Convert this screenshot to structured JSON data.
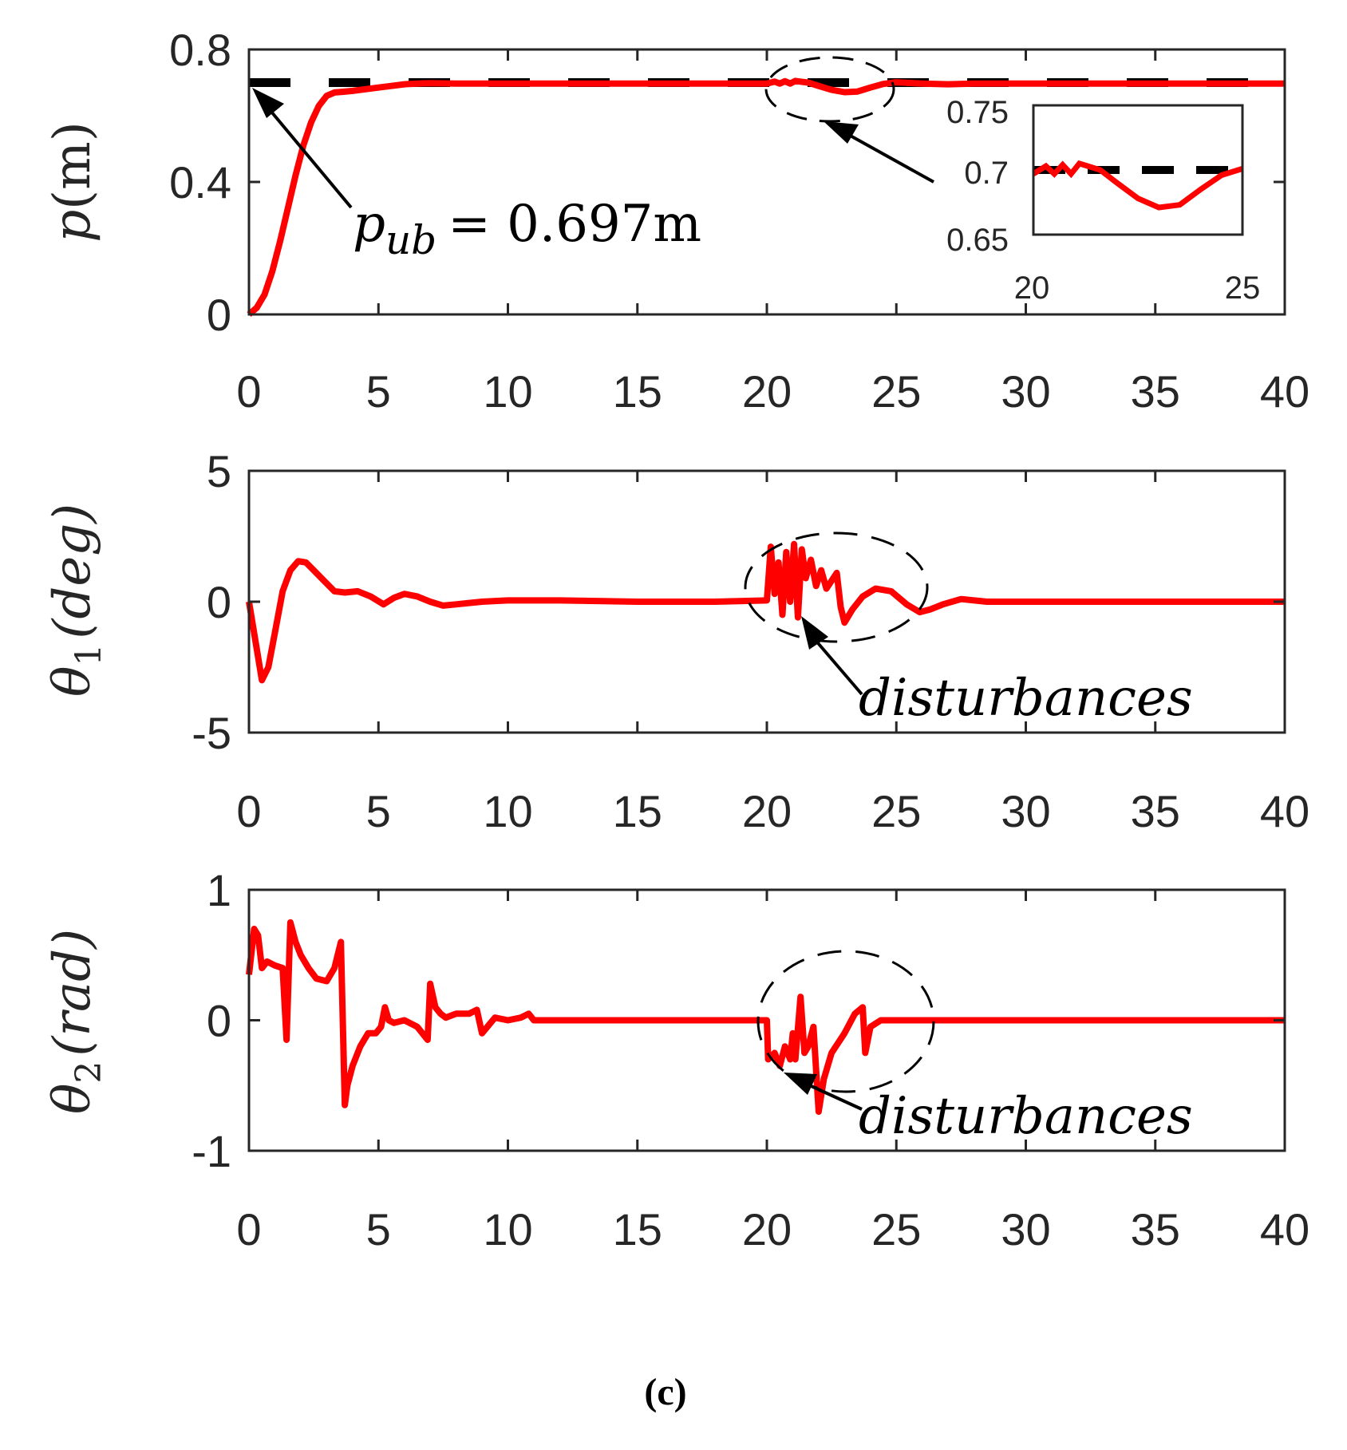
{
  "figure": {
    "caption": "(c)",
    "ref_color": "#000000",
    "series_color": "#ff0000",
    "axis_color": "#262626"
  },
  "chart_data": [
    {
      "type": "line",
      "xlabel": "",
      "ylabel": {
        "var": "p",
        "unit": "(m)"
      },
      "xlim": [
        0,
        40
      ],
      "ylim": [
        0,
        0.8
      ],
      "xticks": [
        0,
        5,
        10,
        15,
        20,
        25,
        30,
        35,
        40
      ],
      "yticks": [
        "0",
        "0.4",
        "0.8"
      ],
      "reference": {
        "name": "p_ub",
        "value": 0.7,
        "style": "dashed"
      },
      "annotation": {
        "lhs": "p",
        "sub": "ub",
        "rhs": "= 0.697m"
      },
      "series": [
        {
          "name": "p(m)",
          "x": [
            0,
            0.3,
            0.6,
            0.9,
            1.2,
            1.5,
            1.8,
            2.1,
            2.4,
            2.7,
            3.0,
            3.3,
            3.6,
            4.0,
            4.5,
            5.0,
            5.5,
            6.0,
            6.5,
            7,
            8,
            10,
            12,
            15,
            18,
            20,
            20.3,
            20.5,
            20.7,
            20.9,
            21.1,
            21.3,
            21.6,
            22.0,
            22.5,
            23.0,
            23.5,
            24.0,
            24.5,
            25.0,
            26,
            27,
            28,
            30,
            35,
            40
          ],
          "y": [
            0.0,
            0.02,
            0.06,
            0.13,
            0.22,
            0.32,
            0.42,
            0.51,
            0.58,
            0.63,
            0.66,
            0.67,
            0.672,
            0.675,
            0.68,
            0.685,
            0.69,
            0.695,
            0.697,
            0.698,
            0.697,
            0.697,
            0.697,
            0.697,
            0.697,
            0.697,
            0.703,
            0.697,
            0.704,
            0.697,
            0.705,
            0.703,
            0.7,
            0.69,
            0.678,
            0.671,
            0.673,
            0.685,
            0.696,
            0.701,
            0.697,
            0.695,
            0.697,
            0.697,
            0.697,
            0.697
          ]
        }
      ],
      "inset": {
        "xlim": [
          20,
          25
        ],
        "ylim": [
          0.65,
          0.75
        ],
        "xticks": [
          "20",
          "25"
        ],
        "yticks": [
          "0.65",
          "0.7",
          "0.75"
        ]
      }
    },
    {
      "type": "line",
      "xlabel": "",
      "ylabel": {
        "var": "θ",
        "sub": "1",
        "unit": "(deg)"
      },
      "xlim": [
        0,
        40
      ],
      "ylim": [
        -5,
        5
      ],
      "xticks": [
        0,
        5,
        10,
        15,
        20,
        25,
        30,
        35,
        40
      ],
      "yticks": [
        "-5",
        "0",
        "5"
      ],
      "annotation": {
        "text": "disturbances"
      },
      "series": [
        {
          "name": "θ1(deg)",
          "x": [
            0,
            0.25,
            0.5,
            0.75,
            1.0,
            1.3,
            1.6,
            1.9,
            2.2,
            2.5,
            2.9,
            3.3,
            3.7,
            4.2,
            4.7,
            5.2,
            5.6,
            6.0,
            6.5,
            7.0,
            7.5,
            8.0,
            8.5,
            9.0,
            10,
            12,
            15,
            18,
            20.0,
            20.15,
            20.3,
            20.45,
            20.6,
            20.75,
            20.9,
            21.05,
            21.2,
            21.35,
            21.5,
            21.7,
            21.9,
            22.1,
            22.3,
            22.5,
            22.7,
            22.85,
            23.0,
            23.3,
            23.7,
            24.2,
            24.8,
            25.4,
            25.9,
            26.3,
            26.8,
            27.5,
            28.5,
            30,
            32,
            35,
            38,
            40
          ],
          "y": [
            0,
            -1.5,
            -3.0,
            -2.5,
            -1.2,
            0.4,
            1.2,
            1.55,
            1.5,
            1.2,
            0.8,
            0.4,
            0.35,
            0.4,
            0.2,
            -0.1,
            0.15,
            0.3,
            0.2,
            0.0,
            -0.15,
            -0.1,
            -0.05,
            0.0,
            0.05,
            0.05,
            0.0,
            0.0,
            0.05,
            2.1,
            0.3,
            1.5,
            -0.5,
            1.9,
            0.0,
            2.2,
            -0.6,
            2.0,
            0.9,
            1.6,
            0.6,
            1.2,
            0.5,
            0.8,
            1.1,
            -0.2,
            -0.8,
            -0.3,
            0.2,
            0.5,
            0.4,
            -0.1,
            -0.4,
            -0.3,
            -0.1,
            0.1,
            0.0,
            0.0,
            0.0,
            0.0,
            0.0,
            0.0
          ]
        }
      ]
    },
    {
      "type": "line",
      "xlabel": "",
      "ylabel": {
        "var": "θ",
        "sub": "2",
        "unit": "(rad)"
      },
      "xlim": [
        0,
        40
      ],
      "ylim": [
        -1,
        1
      ],
      "xticks": [
        0,
        5,
        10,
        15,
        20,
        25,
        30,
        35,
        40
      ],
      "yticks": [
        "-1",
        "0",
        "1"
      ],
      "annotation": {
        "text": "disturbances"
      },
      "series": [
        {
          "name": "θ2(rad)",
          "x": [
            0,
            0.2,
            0.35,
            0.5,
            0.7,
            1.0,
            1.3,
            1.45,
            1.6,
            1.8,
            2.0,
            2.3,
            2.6,
            3.0,
            3.3,
            3.55,
            3.7,
            3.8,
            4.0,
            4.3,
            4.6,
            4.9,
            5.1,
            5.25,
            5.4,
            5.6,
            6.0,
            6.5,
            6.9,
            7.0,
            7.2,
            7.4,
            7.6,
            8.0,
            8.5,
            8.8,
            9.0,
            9.5,
            10,
            10.5,
            10.8,
            11,
            12,
            15,
            18,
            20.0,
            20.05,
            20.3,
            20.5,
            20.7,
            20.9,
            21.0,
            21.1,
            21.3,
            21.45,
            21.6,
            21.8,
            22.0,
            22.2,
            22.5,
            23.0,
            23.4,
            23.7,
            23.8,
            24.0,
            24.4,
            25,
            26,
            27,
            28,
            30,
            35,
            40
          ],
          "y": [
            0.35,
            0.7,
            0.65,
            0.4,
            0.45,
            0.42,
            0.4,
            -0.15,
            0.75,
            0.6,
            0.5,
            0.4,
            0.32,
            0.3,
            0.4,
            0.6,
            -0.65,
            -0.5,
            -0.35,
            -0.2,
            -0.1,
            -0.1,
            -0.05,
            0.1,
            0.0,
            -0.02,
            0.0,
            -0.05,
            -0.15,
            0.28,
            0.1,
            0.05,
            0.02,
            0.05,
            0.05,
            0.08,
            -0.1,
            0.02,
            0.0,
            0.02,
            0.05,
            0.0,
            0.0,
            0.0,
            0.0,
            0.0,
            -0.3,
            -0.25,
            -0.35,
            -0.2,
            -0.3,
            -0.1,
            -0.3,
            0.18,
            -0.25,
            -0.2,
            -0.05,
            -0.7,
            -0.45,
            -0.25,
            -0.1,
            0.05,
            0.1,
            -0.25,
            -0.05,
            0.0,
            0.0,
            0.0,
            0.0,
            0.0,
            0.0,
            0.0,
            0.0
          ]
        }
      ]
    }
  ]
}
